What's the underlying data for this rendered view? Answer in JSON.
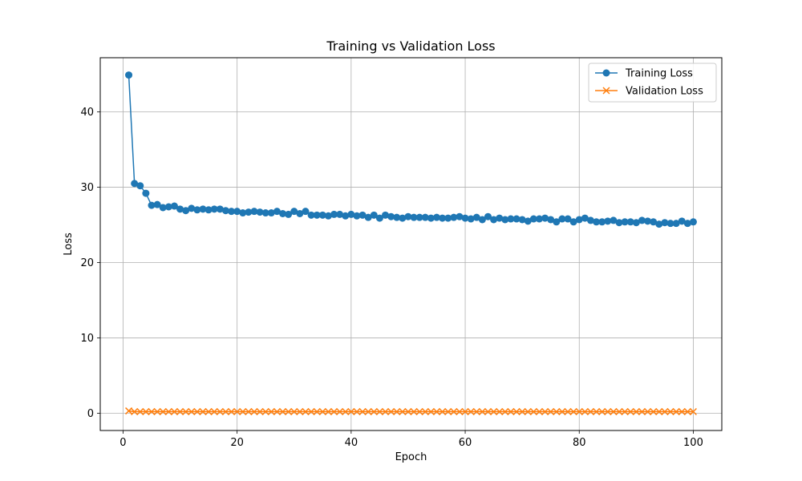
{
  "chart_data": {
    "type": "line",
    "title": "Training vs Validation Loss",
    "xlabel": "Epoch",
    "ylabel": "Loss",
    "xlim": [
      -4,
      105
    ],
    "ylim": [
      -2.3,
      47.2
    ],
    "xticks": [
      0,
      20,
      40,
      60,
      80,
      100
    ],
    "yticks": [
      0,
      10,
      20,
      30,
      40
    ],
    "grid": true,
    "legend_position": "top-right",
    "x": [
      1,
      2,
      3,
      4,
      5,
      6,
      7,
      8,
      9,
      10,
      11,
      12,
      13,
      14,
      15,
      16,
      17,
      18,
      19,
      20,
      21,
      22,
      23,
      24,
      25,
      26,
      27,
      28,
      29,
      30,
      31,
      32,
      33,
      34,
      35,
      36,
      37,
      38,
      39,
      40,
      41,
      42,
      43,
      44,
      45,
      46,
      47,
      48,
      49,
      50,
      51,
      52,
      53,
      54,
      55,
      56,
      57,
      58,
      59,
      60,
      61,
      62,
      63,
      64,
      65,
      66,
      67,
      68,
      69,
      70,
      71,
      72,
      73,
      74,
      75,
      76,
      77,
      78,
      79,
      80,
      81,
      82,
      83,
      84,
      85,
      86,
      87,
      88,
      89,
      90,
      91,
      92,
      93,
      94,
      95,
      96,
      97,
      98,
      99,
      100
    ],
    "series": [
      {
        "name": "Training Loss",
        "color": "#1f77b4",
        "marker": "circle",
        "values": [
          44.9,
          30.5,
          30.2,
          29.2,
          27.6,
          27.7,
          27.3,
          27.4,
          27.5,
          27.1,
          26.9,
          27.2,
          27.0,
          27.1,
          27.0,
          27.1,
          27.1,
          26.9,
          26.8,
          26.8,
          26.6,
          26.7,
          26.8,
          26.7,
          26.6,
          26.6,
          26.8,
          26.5,
          26.4,
          26.8,
          26.5,
          26.8,
          26.3,
          26.3,
          26.3,
          26.2,
          26.4,
          26.4,
          26.2,
          26.4,
          26.2,
          26.3,
          26.0,
          26.3,
          25.9,
          26.3,
          26.1,
          26.0,
          25.9,
          26.1,
          26.0,
          26.0,
          26.0,
          25.9,
          26.0,
          25.9,
          25.9,
          26.0,
          26.1,
          25.9,
          25.8,
          26.0,
          25.7,
          26.1,
          25.7,
          25.9,
          25.7,
          25.8,
          25.8,
          25.7,
          25.5,
          25.8,
          25.8,
          25.9,
          25.7,
          25.4,
          25.8,
          25.8,
          25.4,
          25.7,
          25.9,
          25.6,
          25.4,
          25.4,
          25.5,
          25.6,
          25.3,
          25.4,
          25.4,
          25.3,
          25.6,
          25.5,
          25.4,
          25.1,
          25.3,
          25.2,
          25.2,
          25.5,
          25.2,
          25.4
        ]
      },
      {
        "name": "Validation Loss",
        "color": "#ff7f0e",
        "marker": "x",
        "values": [
          0.3,
          0.2,
          0.2,
          0.2,
          0.2,
          0.2,
          0.2,
          0.2,
          0.2,
          0.2,
          0.2,
          0.2,
          0.2,
          0.2,
          0.2,
          0.2,
          0.2,
          0.2,
          0.2,
          0.2,
          0.2,
          0.2,
          0.2,
          0.2,
          0.2,
          0.2,
          0.2,
          0.2,
          0.2,
          0.2,
          0.2,
          0.2,
          0.2,
          0.2,
          0.2,
          0.2,
          0.2,
          0.2,
          0.2,
          0.2,
          0.2,
          0.2,
          0.2,
          0.2,
          0.2,
          0.2,
          0.2,
          0.2,
          0.2,
          0.2,
          0.2,
          0.2,
          0.2,
          0.2,
          0.2,
          0.2,
          0.2,
          0.2,
          0.2,
          0.2,
          0.2,
          0.2,
          0.2,
          0.2,
          0.2,
          0.2,
          0.2,
          0.2,
          0.2,
          0.2,
          0.2,
          0.2,
          0.2,
          0.2,
          0.2,
          0.2,
          0.2,
          0.2,
          0.2,
          0.2,
          0.2,
          0.2,
          0.2,
          0.2,
          0.2,
          0.2,
          0.2,
          0.2,
          0.2,
          0.2,
          0.2,
          0.2,
          0.2,
          0.2,
          0.2,
          0.2,
          0.2,
          0.2,
          0.2,
          0.2
        ]
      }
    ]
  }
}
